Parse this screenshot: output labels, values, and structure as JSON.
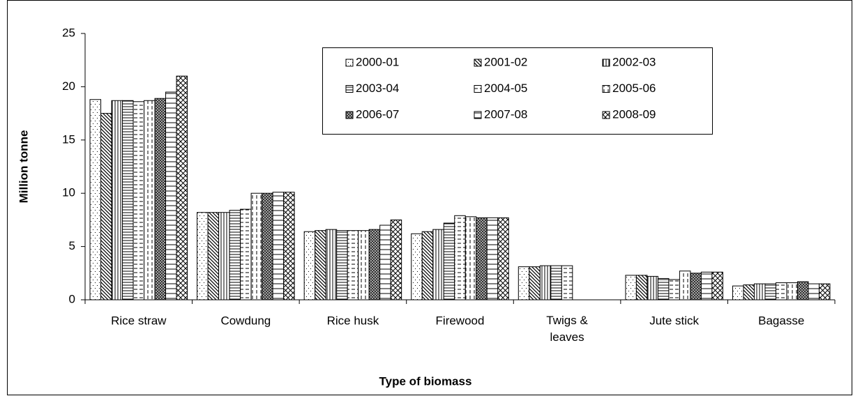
{
  "chart_data": {
    "type": "bar",
    "xlabel": "Type of biomass",
    "ylabel": "Million tonne",
    "categories": [
      "Rice straw",
      "Cowdung",
      "Rice husk",
      "Firewood",
      "Twigs & leaves",
      "Jute stick",
      "Bagasse"
    ],
    "series": [
      {
        "name": "2000-01",
        "color": "#000000",
        "values": [
          18.8,
          8.2,
          6.4,
          6.2,
          3.1,
          2.3,
          1.3
        ]
      },
      {
        "name": "2001-02",
        "color": "#000000",
        "values": [
          17.5,
          8.2,
          6.5,
          6.4,
          3.1,
          2.3,
          1.4
        ]
      },
      {
        "name": "2002-03",
        "color": "#000000",
        "values": [
          18.7,
          8.2,
          6.6,
          6.6,
          3.2,
          2.2,
          1.5
        ]
      },
      {
        "name": "2003-04",
        "color": "#000000",
        "values": [
          18.7,
          8.4,
          6.5,
          7.2,
          3.2,
          2.0,
          1.5
        ]
      },
      {
        "name": "2004-05",
        "color": "#000000",
        "values": [
          18.6,
          8.5,
          6.5,
          7.9,
          3.2,
          1.9,
          1.6
        ]
      },
      {
        "name": "2005-06",
        "color": "#000000",
        "values": [
          18.7,
          10.0,
          6.5,
          7.8,
          null,
          2.7,
          1.6
        ]
      },
      {
        "name": "2006-07",
        "color": "#000000",
        "values": [
          18.9,
          10.0,
          6.6,
          7.7,
          null,
          2.5,
          1.7
        ]
      },
      {
        "name": "2007-08",
        "color": "#000000",
        "values": [
          19.5,
          10.1,
          7.0,
          7.7,
          null,
          2.6,
          1.5
        ]
      },
      {
        "name": "2008-09",
        "color": "#000000",
        "values": [
          21.0,
          10.1,
          7.5,
          7.7,
          null,
          2.6,
          1.5
        ]
      }
    ],
    "ylim": [
      0,
      25
    ],
    "yticks": [
      0,
      5,
      10,
      15,
      20,
      25
    ],
    "grid": false,
    "legend": "top-right"
  }
}
